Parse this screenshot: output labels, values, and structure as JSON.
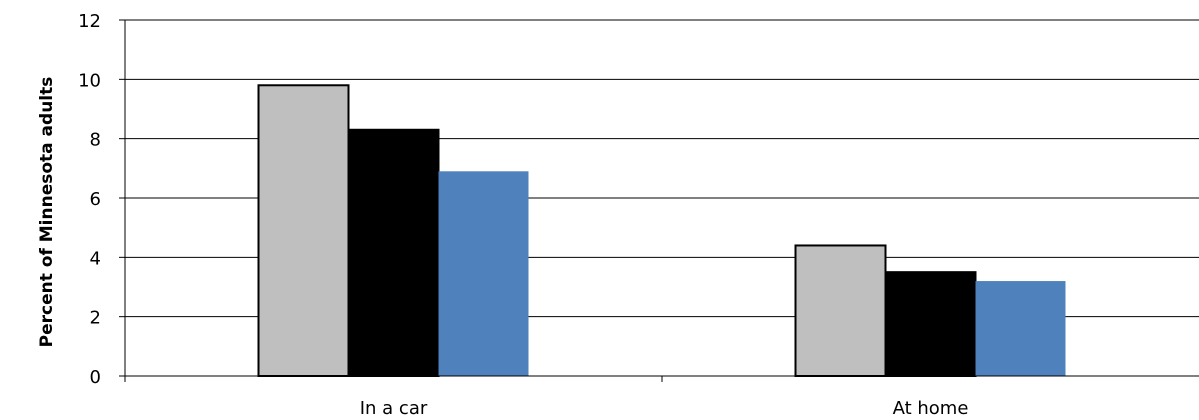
{
  "chart_data": {
    "type": "bar",
    "title": "",
    "xlabel": "",
    "ylabel": "Percent of Minnesota adults",
    "categories": [
      "In a car",
      "At home"
    ],
    "series": [
      {
        "values": [
          9.8,
          4.4
        ],
        "color": "#bfbfbf"
      },
      {
        "values": [
          8.3,
          3.5
        ],
        "color": "#000000"
      },
      {
        "values": [
          6.9,
          3.2
        ],
        "color": "#4f81bd"
      }
    ],
    "ylim": [
      0,
      12
    ],
    "yticks": [
      0,
      2,
      4,
      6,
      8,
      10,
      12
    ],
    "grid": true,
    "legend": "none"
  }
}
